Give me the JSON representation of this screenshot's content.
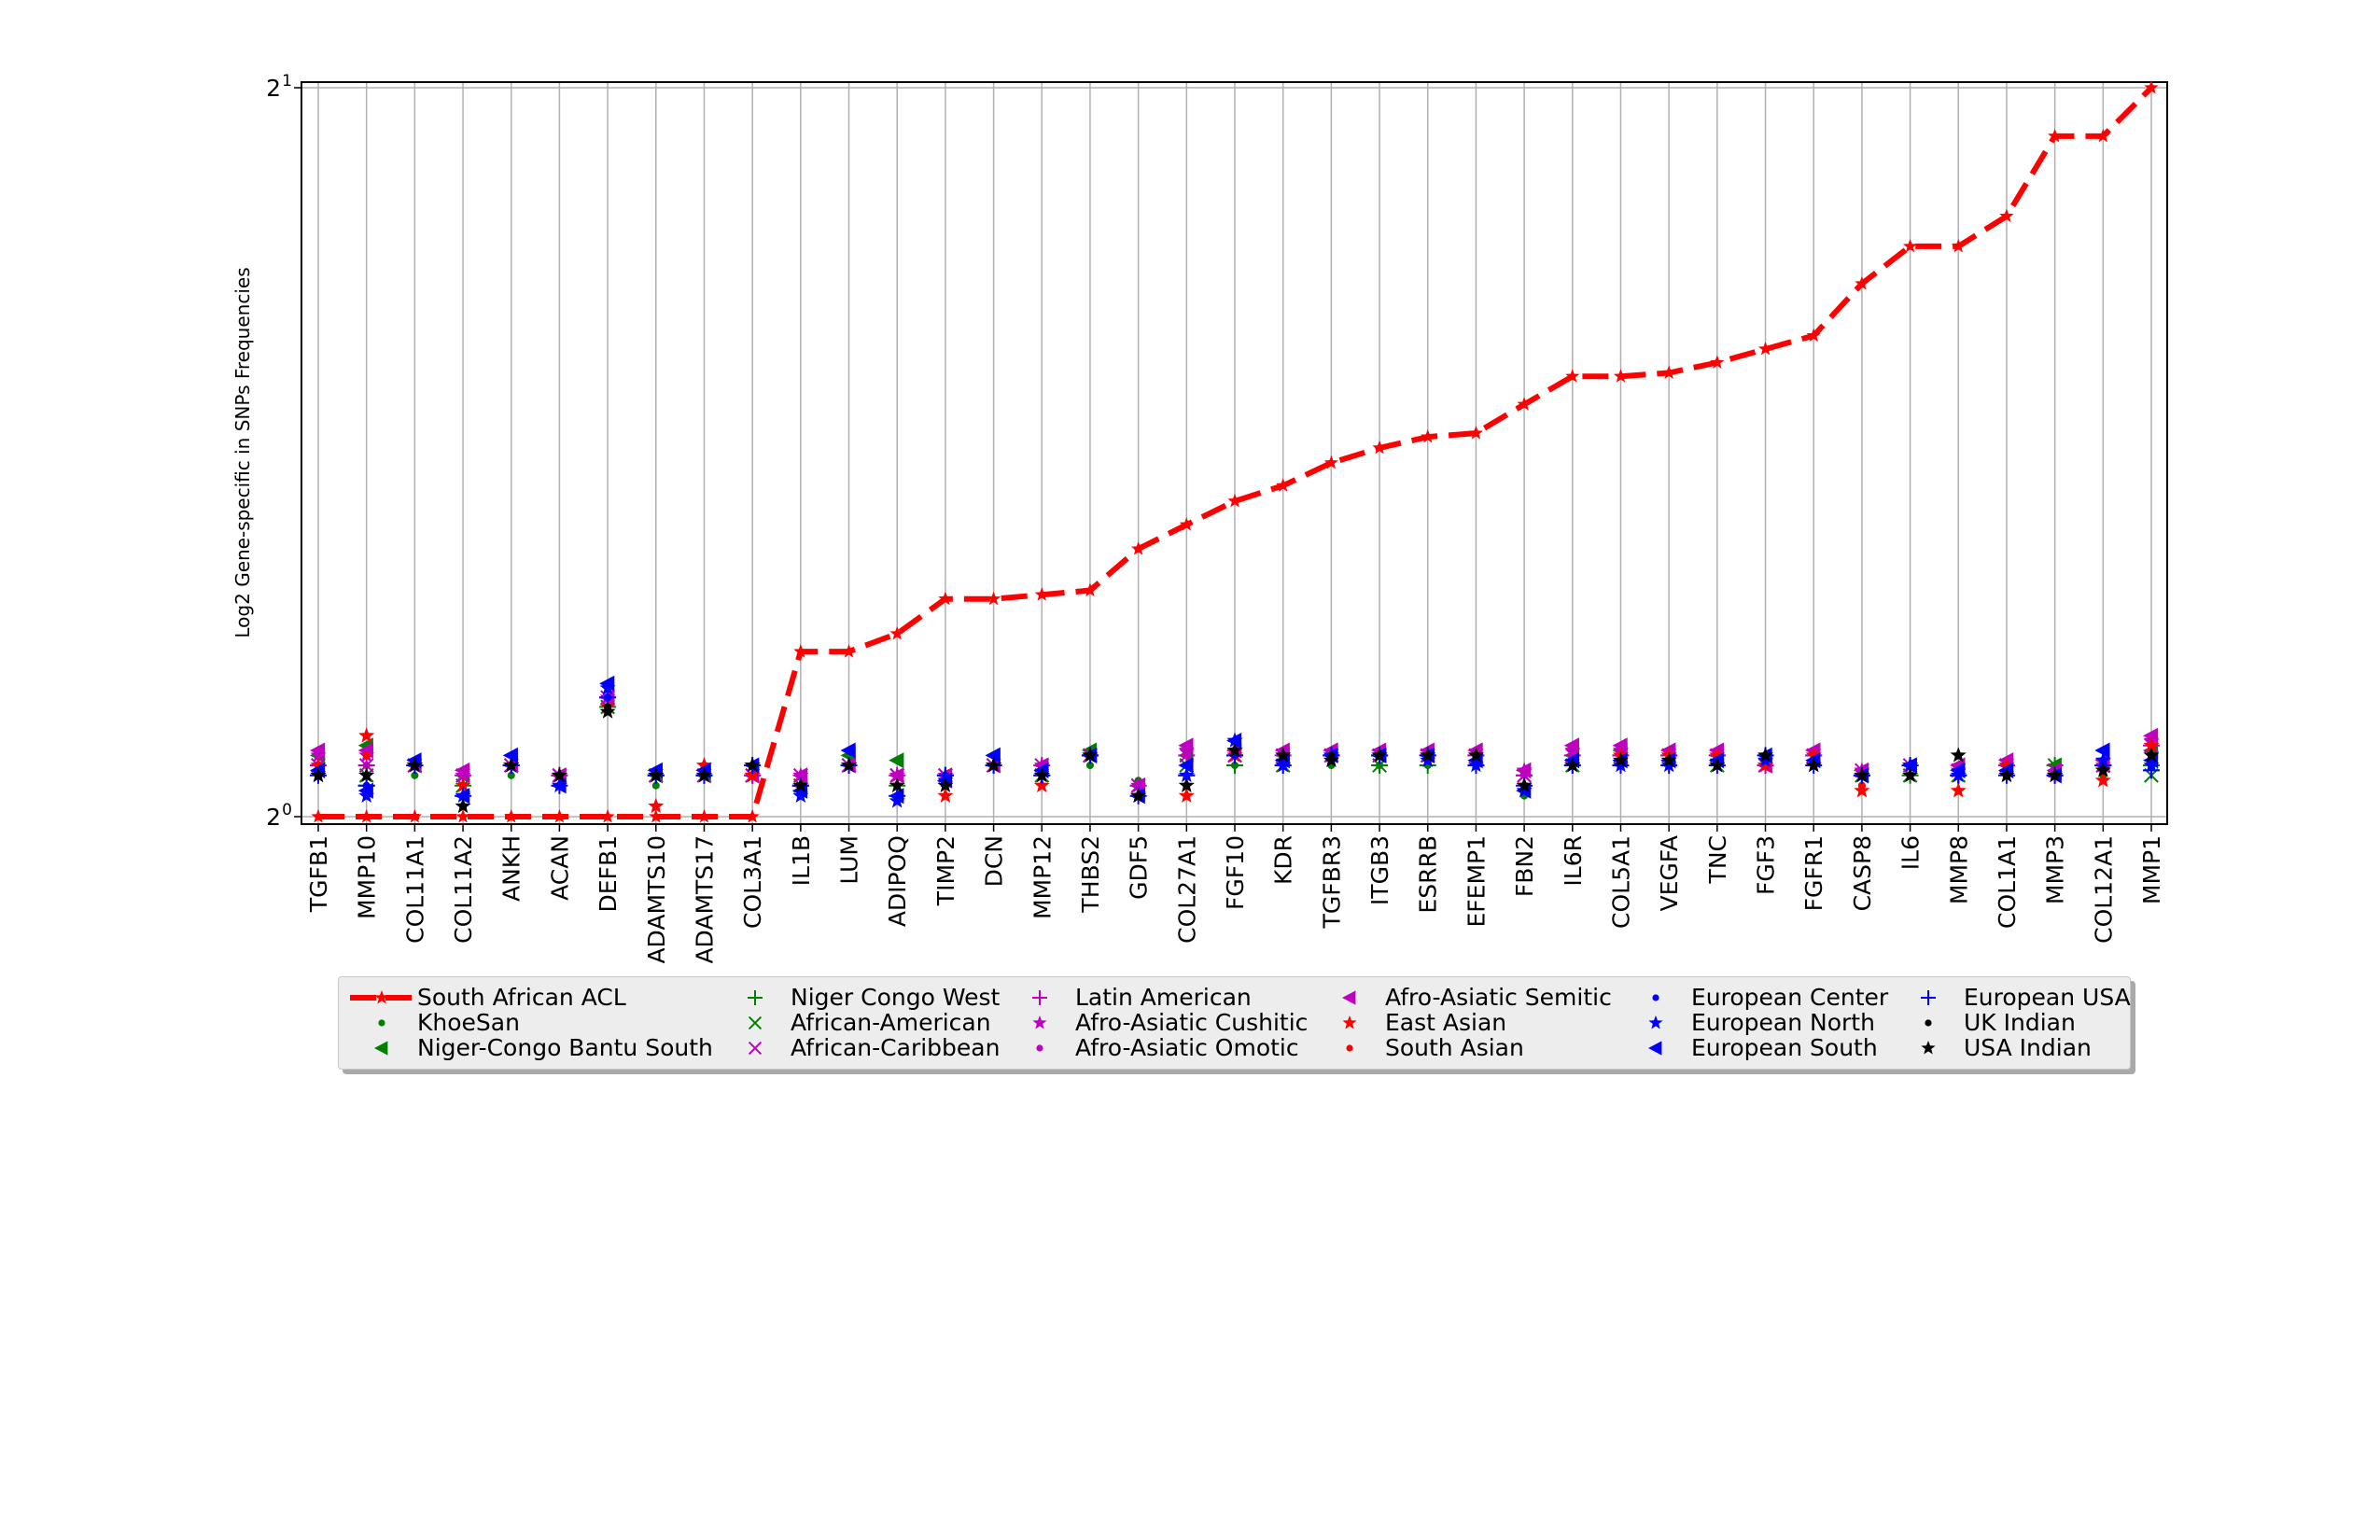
{
  "chart_data": {
    "type": "line",
    "ylabel": "Log2 Gene-specific in SNPs Frequencies",
    "xlabel": "",
    "yscale": "log2",
    "ylim": [
      1.0,
      2.0
    ],
    "yticks": [
      {
        "value": 1,
        "label_base": "2",
        "label_exp": "0"
      },
      {
        "value": 2,
        "label_base": "2",
        "label_exp": "1"
      }
    ],
    "grid": "vertical",
    "legend_placement": "below plot, centered",
    "categories": [
      "TGFB1",
      "MMP10",
      "COL11A1",
      "COL11A2",
      "ANKH",
      "ACAN",
      "DEFB1",
      "ADAMTS10",
      "ADAMTS17",
      "COL3A1",
      "IL1B",
      "LUM",
      "ADIPOQ",
      "TIMP2",
      "DCN",
      "MMP12",
      "THBS2",
      "GDF5",
      "COL27A1",
      "FGF10",
      "KDR",
      "TGFBR3",
      "ITGB3",
      "ESRRB",
      "EFEMP1",
      "FBN2",
      "IL6R",
      "COL5A1",
      "VEGFA",
      "TNC",
      "FGF3",
      "FGFR1",
      "CASP8",
      "IL6",
      "MMP8",
      "COL1A1",
      "MMP3",
      "COL12A1",
      "MMP1"
    ],
    "main_series": {
      "name": "South African ACL",
      "color": "#ff0000",
      "values": [
        1.0,
        1.0,
        1.0,
        1.0,
        1.0,
        1.0,
        1.0,
        1.0,
        1.0,
        1.0,
        1.17,
        1.17,
        1.19,
        1.23,
        1.23,
        1.235,
        1.24,
        1.29,
        1.32,
        1.35,
        1.37,
        1.4,
        1.42,
        1.435,
        1.44,
        1.48,
        1.52,
        1.52,
        1.525,
        1.54,
        1.56,
        1.58,
        1.66,
        1.72,
        1.72,
        1.77,
        1.91,
        1.91,
        2.0
      ]
    },
    "population_series": [
      {
        "name": "KhoeSan",
        "marker": "dot",
        "color": "#008000",
        "values": [
          1.04,
          1.06,
          1.04,
          1.01,
          1.04,
          1.04,
          1.11,
          1.03,
          1.04,
          1.04,
          1.02,
          1.05,
          1.04,
          1.03,
          1.05,
          1.04,
          1.05,
          1.035,
          1.04,
          1.05,
          1.05,
          1.05,
          1.05,
          1.05,
          1.05,
          1.02,
          1.05,
          1.05,
          1.05,
          1.05,
          1.05,
          1.05,
          1.03,
          1.04,
          1.04,
          1.04,
          1.04,
          1.04,
          1.05
        ]
      },
      {
        "name": "Niger-Congo Bantu South",
        "marker": "triangle-left",
        "color": "#008000",
        "values": [
          1.06,
          1.07,
          1.05,
          1.04,
          1.05,
          1.04,
          1.12,
          1.04,
          1.04,
          1.04,
          1.03,
          1.06,
          1.055,
          1.04,
          1.06,
          1.05,
          1.065,
          1.03,
          1.06,
          1.065,
          1.06,
          1.065,
          1.06,
          1.06,
          1.065,
          1.045,
          1.06,
          1.065,
          1.065,
          1.06,
          1.05,
          1.065,
          1.04,
          1.05,
          1.05,
          1.05,
          1.05,
          1.05,
          1.065
        ]
      },
      {
        "name": "Niger Congo West",
        "marker": "plus",
        "color": "#008000",
        "values": [
          1.05,
          1.03,
          1.05,
          1.03,
          1.05,
          1.04,
          1.11,
          1.04,
          1.04,
          1.04,
          1.03,
          1.05,
          1.03,
          1.04,
          1.05,
          1.04,
          1.06,
          1.03,
          1.04,
          1.05,
          1.05,
          1.06,
          1.05,
          1.05,
          1.06,
          1.04,
          1.05,
          1.06,
          1.06,
          1.06,
          1.05,
          1.06,
          1.04,
          1.04,
          1.04,
          1.05,
          1.05,
          1.05,
          1.05
        ]
      },
      {
        "name": "African-American",
        "marker": "x",
        "color": "#008000",
        "values": [
          1.05,
          1.04,
          1.05,
          1.03,
          1.05,
          1.04,
          1.11,
          1.04,
          1.04,
          1.04,
          1.03,
          1.05,
          1.04,
          1.04,
          1.05,
          1.04,
          1.06,
          1.03,
          1.05,
          1.06,
          1.05,
          1.06,
          1.05,
          1.06,
          1.06,
          1.04,
          1.05,
          1.06,
          1.06,
          1.05,
          1.05,
          1.06,
          1.04,
          1.04,
          1.04,
          1.05,
          1.05,
          1.05,
          1.04
        ]
      },
      {
        "name": "African-Caribbean",
        "marker": "x",
        "color": "#c000c0",
        "values": [
          1.05,
          1.05,
          1.05,
          1.04,
          1.05,
          1.04,
          1.12,
          1.04,
          1.04,
          1.04,
          1.04,
          1.05,
          1.04,
          1.04,
          1.05,
          1.05,
          1.06,
          1.03,
          1.06,
          1.06,
          1.06,
          1.06,
          1.06,
          1.06,
          1.06,
          1.04,
          1.06,
          1.06,
          1.06,
          1.06,
          1.05,
          1.06,
          1.045,
          1.05,
          1.045,
          1.05,
          1.045,
          1.05,
          1.07
        ]
      },
      {
        "name": "Latin American",
        "marker": "plus",
        "color": "#c000c0",
        "values": [
          1.05,
          1.05,
          1.05,
          1.04,
          1.05,
          1.04,
          1.12,
          1.04,
          1.04,
          1.04,
          1.03,
          1.05,
          1.04,
          1.04,
          1.05,
          1.05,
          1.06,
          1.03,
          1.06,
          1.06,
          1.06,
          1.06,
          1.06,
          1.06,
          1.06,
          1.04,
          1.06,
          1.06,
          1.06,
          1.06,
          1.05,
          1.06,
          1.04,
          1.05,
          1.04,
          1.05,
          1.04,
          1.05,
          1.07
        ]
      },
      {
        "name": "Afro-Asiatic Cushitic",
        "marker": "star",
        "color": "#c000c0",
        "values": [
          1.06,
          1.06,
          1.05,
          1.04,
          1.05,
          1.04,
          1.12,
          1.04,
          1.04,
          1.04,
          1.04,
          1.05,
          1.04,
          1.04,
          1.05,
          1.05,
          1.06,
          1.03,
          1.065,
          1.06,
          1.06,
          1.06,
          1.06,
          1.06,
          1.06,
          1.045,
          1.065,
          1.065,
          1.06,
          1.06,
          1.05,
          1.06,
          1.045,
          1.05,
          1.045,
          1.05,
          1.04,
          1.05,
          1.075
        ]
      },
      {
        "name": "Afro-Asiatic Omotic",
        "marker": "dot",
        "color": "#c000c0",
        "values": [
          1.05,
          1.05,
          1.05,
          1.04,
          1.05,
          1.04,
          1.11,
          1.04,
          1.04,
          1.04,
          1.03,
          1.05,
          1.04,
          1.04,
          1.05,
          1.05,
          1.06,
          1.03,
          1.06,
          1.06,
          1.06,
          1.06,
          1.06,
          1.06,
          1.06,
          1.04,
          1.06,
          1.06,
          1.06,
          1.06,
          1.05,
          1.06,
          1.04,
          1.05,
          1.04,
          1.05,
          1.04,
          1.05,
          1.07
        ]
      },
      {
        "name": "Afro-Asiatic Semitic",
        "marker": "triangle-left",
        "color": "#c000c0",
        "values": [
          1.065,
          1.065,
          1.05,
          1.045,
          1.05,
          1.04,
          1.12,
          1.045,
          1.045,
          1.04,
          1.04,
          1.05,
          1.04,
          1.04,
          1.05,
          1.05,
          1.06,
          1.03,
          1.07,
          1.065,
          1.065,
          1.065,
          1.065,
          1.065,
          1.065,
          1.045,
          1.07,
          1.07,
          1.065,
          1.065,
          1.05,
          1.065,
          1.045,
          1.05,
          1.05,
          1.055,
          1.045,
          1.055,
          1.08
        ]
      },
      {
        "name": "East Asian",
        "marker": "star",
        "color": "#ff0000",
        "values": [
          1.05,
          1.08,
          1.05,
          1.03,
          1.05,
          1.04,
          1.11,
          1.01,
          1.05,
          1.04,
          1.03,
          1.05,
          1.03,
          1.02,
          1.05,
          1.03,
          1.06,
          1.02,
          1.02,
          1.06,
          1.05,
          1.06,
          1.06,
          1.06,
          1.06,
          1.03,
          1.05,
          1.06,
          1.06,
          1.06,
          1.05,
          1.06,
          1.025,
          1.05,
          1.025,
          1.05,
          1.04,
          1.035,
          1.07
        ]
      },
      {
        "name": "South Asian",
        "marker": "dot",
        "color": "#ff0000",
        "values": [
          1.05,
          1.06,
          1.05,
          1.03,
          1.05,
          1.04,
          1.11,
          1.04,
          1.05,
          1.04,
          1.03,
          1.05,
          1.03,
          1.03,
          1.05,
          1.04,
          1.06,
          1.02,
          1.04,
          1.06,
          1.05,
          1.06,
          1.06,
          1.06,
          1.06,
          1.03,
          1.05,
          1.06,
          1.06,
          1.06,
          1.05,
          1.06,
          1.03,
          1.05,
          1.04,
          1.05,
          1.04,
          1.05,
          1.07
        ]
      },
      {
        "name": "European Center",
        "marker": "dot",
        "color": "#0000ff",
        "values": [
          1.04,
          1.03,
          1.05,
          1.02,
          1.05,
          1.03,
          1.12,
          1.04,
          1.04,
          1.05,
          1.03,
          1.05,
          1.02,
          1.04,
          1.05,
          1.04,
          1.06,
          1.02,
          1.04,
          1.06,
          1.05,
          1.06,
          1.06,
          1.06,
          1.05,
          1.03,
          1.05,
          1.05,
          1.05,
          1.05,
          1.06,
          1.05,
          1.04,
          1.05,
          1.04,
          1.04,
          1.04,
          1.05,
          1.05
        ]
      },
      {
        "name": "European North",
        "marker": "star",
        "color": "#0000ff",
        "values": [
          1.04,
          1.02,
          1.05,
          1.02,
          1.05,
          1.03,
          1.13,
          1.04,
          1.04,
          1.05,
          1.02,
          1.05,
          1.015,
          1.035,
          1.05,
          1.04,
          1.06,
          1.02,
          1.04,
          1.075,
          1.05,
          1.06,
          1.06,
          1.055,
          1.05,
          1.025,
          1.05,
          1.05,
          1.05,
          1.05,
          1.055,
          1.05,
          1.04,
          1.05,
          1.04,
          1.04,
          1.04,
          1.055,
          1.05
        ]
      },
      {
        "name": "European South",
        "marker": "triangle-left",
        "color": "#0000ff",
        "values": [
          1.045,
          1.025,
          1.055,
          1.02,
          1.06,
          1.03,
          1.135,
          1.045,
          1.045,
          1.05,
          1.025,
          1.065,
          1.02,
          1.035,
          1.06,
          1.045,
          1.06,
          1.02,
          1.05,
          1.075,
          1.055,
          1.06,
          1.06,
          1.06,
          1.055,
          1.025,
          1.055,
          1.055,
          1.055,
          1.055,
          1.06,
          1.055,
          1.04,
          1.05,
          1.045,
          1.045,
          1.04,
          1.065,
          1.055
        ]
      },
      {
        "name": "European USA",
        "marker": "plus",
        "color": "#0000ff",
        "values": [
          1.04,
          1.03,
          1.05,
          1.02,
          1.05,
          1.03,
          1.12,
          1.04,
          1.04,
          1.05,
          1.03,
          1.05,
          1.02,
          1.04,
          1.05,
          1.04,
          1.06,
          1.02,
          1.04,
          1.06,
          1.05,
          1.06,
          1.06,
          1.06,
          1.05,
          1.03,
          1.05,
          1.05,
          1.05,
          1.05,
          1.06,
          1.05,
          1.04,
          1.05,
          1.04,
          1.04,
          1.04,
          1.05,
          1.045
        ]
      },
      {
        "name": "UK Indian",
        "marker": "dot",
        "color": "#000000",
        "values": [
          1.04,
          1.04,
          1.05,
          1.01,
          1.05,
          1.04,
          1.11,
          1.04,
          1.04,
          1.05,
          1.03,
          1.05,
          1.03,
          1.03,
          1.05,
          1.04,
          1.06,
          1.02,
          1.03,
          1.065,
          1.06,
          1.06,
          1.06,
          1.06,
          1.06,
          1.03,
          1.05,
          1.055,
          1.055,
          1.05,
          1.06,
          1.05,
          1.04,
          1.04,
          1.06,
          1.04,
          1.04,
          1.045,
          1.06
        ]
      },
      {
        "name": "USA Indian",
        "marker": "star",
        "color": "#000000",
        "values": [
          1.04,
          1.04,
          1.05,
          1.01,
          1.05,
          1.04,
          1.105,
          1.04,
          1.04,
          1.05,
          1.03,
          1.05,
          1.03,
          1.03,
          1.05,
          1.04,
          1.06,
          1.02,
          1.03,
          1.065,
          1.06,
          1.055,
          1.06,
          1.06,
          1.06,
          1.03,
          1.05,
          1.055,
          1.055,
          1.05,
          1.06,
          1.05,
          1.04,
          1.04,
          1.06,
          1.04,
          1.04,
          1.045,
          1.06
        ]
      }
    ]
  }
}
